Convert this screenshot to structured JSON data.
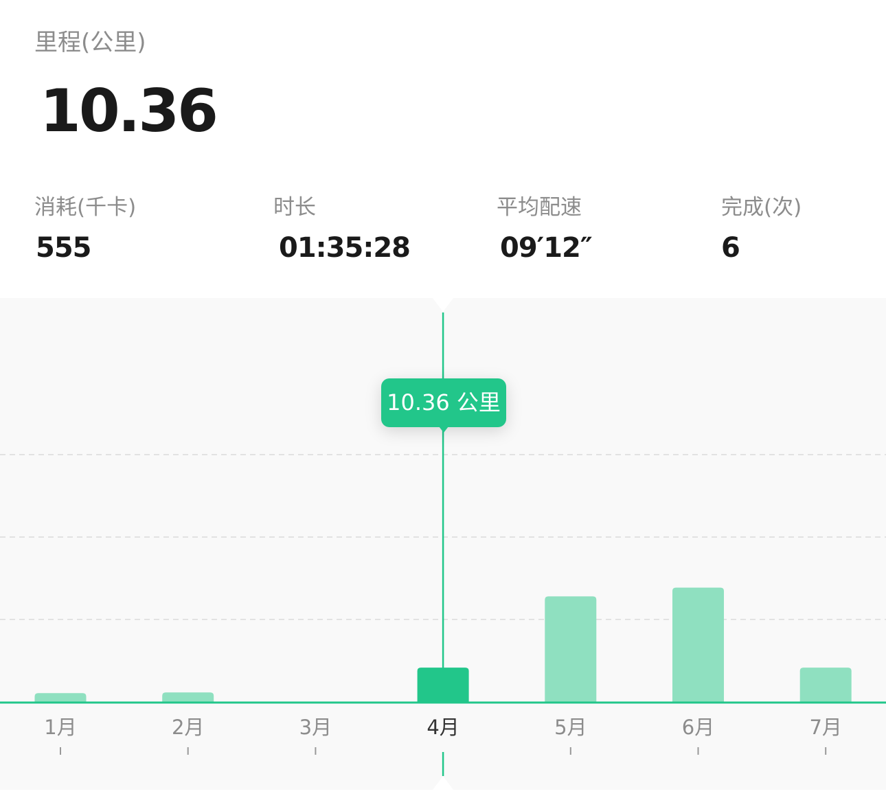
{
  "summary": {
    "distance_label": "里程(公里)",
    "distance_value": "10.36",
    "stats": [
      {
        "label": "消耗(千卡)",
        "value": "555"
      },
      {
        "label": "时长",
        "value": "01:35:28"
      },
      {
        "label": "平均配速",
        "value": "09′12″"
      },
      {
        "label": "完成(次)",
        "value": "6"
      }
    ]
  },
  "chart_data": {
    "type": "bar",
    "categories": [
      "1月",
      "2月",
      "3月",
      "4月",
      "5月",
      "6月",
      "7月"
    ],
    "values": [
      2.8,
      3.0,
      0,
      10.36,
      31.5,
      34.1,
      10.36
    ],
    "ylim": [
      0,
      120
    ],
    "grid": true,
    "selected_index": 3,
    "tooltip": "10.36 公里",
    "colors": {
      "selected": "#22c68a",
      "bar": "#8fe0c0",
      "axis": "#22c68a",
      "label": "#8c8c8c",
      "label_selected": "#333333"
    }
  }
}
